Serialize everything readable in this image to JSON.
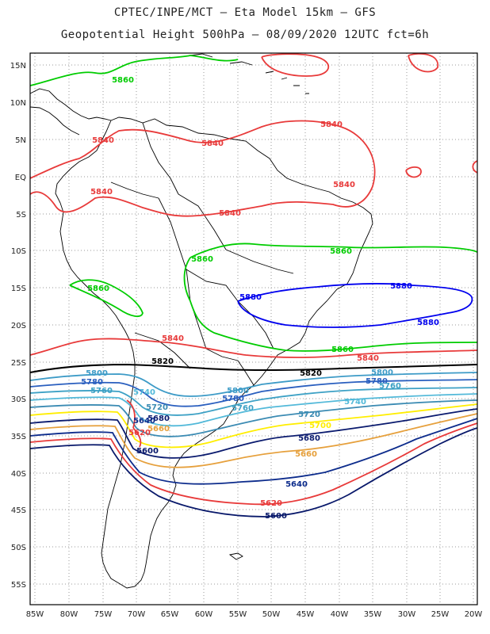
{
  "title_line1": "CPTEC/INPE/MCT –  Eta Model 15km – GFS",
  "title_line2": "Geopotential Height 500hPa – 08/09/2020 12UTC fct=6h",
  "lat_labels": [
    "15N",
    "10N",
    "5N",
    "EQ",
    "5S",
    "10S",
    "15S",
    "20S",
    "25S",
    "30S",
    "35S",
    "40S",
    "45S",
    "50S",
    "55S"
  ],
  "lon_labels": [
    "85W",
    "80W",
    "75W",
    "70W",
    "65W",
    "60W",
    "55W",
    "50W",
    "45W",
    "40W",
    "35W",
    "30W",
    "25W",
    "20W"
  ],
  "colors": {
    "c5880": "#0000ee",
    "c5860": "#00cc00",
    "c5840": "#e83a3a",
    "c5820": "#000000",
    "c5800": "#3d9bc7",
    "c5780": "#2a5fbf",
    "c5760": "#3da1c5",
    "c5740": "#52b9d9",
    "c5720": "#3b8bb3",
    "c5700": "#ffee00",
    "c5680": "#0a1a6e",
    "c5660": "#e6a03c",
    "c5640": "#0d2c8c",
    "c5620": "#e83a3a",
    "c5600": "#08186a",
    "coast": "#000000",
    "grid": "#999999"
  },
  "contour_labels": [
    {
      "text": "5860",
      "color": "c5860"
    },
    {
      "text": "5840",
      "color": "c5840"
    },
    {
      "text": "5840",
      "color": "c5840"
    },
    {
      "text": "5840",
      "color": "c5840"
    },
    {
      "text": "5840",
      "color": "c5840"
    },
    {
      "text": "5840",
      "color": "c5840"
    },
    {
      "text": "5840",
      "color": "c5840"
    },
    {
      "text": "5860",
      "color": "c5860"
    },
    {
      "text": "5860",
      "color": "c5860"
    },
    {
      "text": "5860",
      "color": "c5860"
    },
    {
      "text": "5880",
      "color": "c5880"
    },
    {
      "text": "5880",
      "color": "c5880"
    },
    {
      "text": "5880",
      "color": "c5880"
    },
    {
      "text": "5860",
      "color": "c5860"
    },
    {
      "text": "5840",
      "color": "c5840"
    },
    {
      "text": "5840",
      "color": "c5840"
    },
    {
      "text": "5820",
      "color": "c5820"
    },
    {
      "text": "5820",
      "color": "c5820"
    },
    {
      "text": "5800",
      "color": "c5800"
    },
    {
      "text": "5800",
      "color": "c5800"
    },
    {
      "text": "5800",
      "color": "c5800"
    },
    {
      "text": "5780",
      "color": "c5780"
    },
    {
      "text": "5780",
      "color": "c5780"
    },
    {
      "text": "5780",
      "color": "c5780"
    },
    {
      "text": "5760",
      "color": "c5760"
    },
    {
      "text": "5760",
      "color": "c5760"
    },
    {
      "text": "5760",
      "color": "c5760"
    },
    {
      "text": "5740",
      "color": "c5740"
    },
    {
      "text": "5740",
      "color": "c5740"
    },
    {
      "text": "5720",
      "color": "c5720"
    },
    {
      "text": "5720",
      "color": "c5720"
    },
    {
      "text": "5700",
      "color": "c5700"
    },
    {
      "text": "5680",
      "color": "c5680"
    },
    {
      "text": "5680",
      "color": "c5680"
    },
    {
      "text": "5660",
      "color": "c5660"
    },
    {
      "text": "5660",
      "color": "c5660"
    },
    {
      "text": "5640",
      "color": "c5640"
    },
    {
      "text": "5640",
      "color": "c5640"
    },
    {
      "text": "5620",
      "color": "c5620"
    },
    {
      "text": "5620",
      "color": "c5620"
    },
    {
      "text": "5600",
      "color": "c5600"
    },
    {
      "text": "5600",
      "color": "c5600"
    }
  ]
}
